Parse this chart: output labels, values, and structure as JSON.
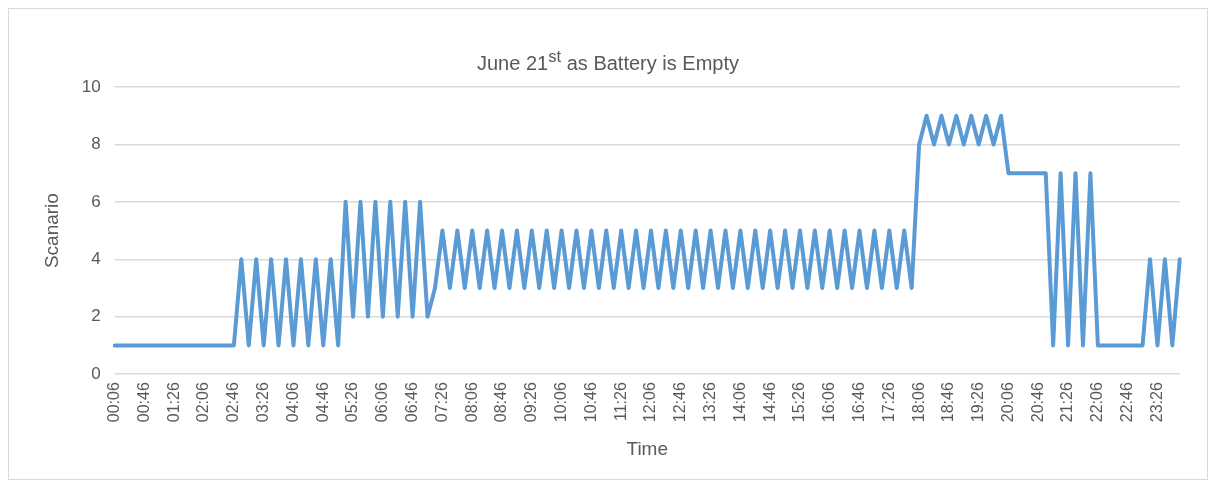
{
  "chart_data": {
    "type": "line",
    "title": "June 21$^{st}$ as Battery is Empty",
    "xlabel": "Time",
    "ylabel": "Scanario",
    "categories": [
      "00:06",
      null,
      null,
      null,
      "00:46",
      null,
      null,
      null,
      "01:26",
      null,
      null,
      null,
      "02:06",
      null,
      null,
      null,
      "02:46",
      null,
      null,
      null,
      "03:26",
      null,
      null,
      null,
      "04:06",
      null,
      null,
      null,
      "04:46",
      null,
      null,
      null,
      "05:26",
      null,
      null,
      null,
      "06:06",
      null,
      null,
      null,
      "06:46",
      null,
      null,
      null,
      "07:26",
      null,
      null,
      null,
      "08:06",
      null,
      null,
      null,
      "08:46",
      null,
      null,
      null,
      "09:26",
      null,
      null,
      null,
      "10:06",
      null,
      null,
      null,
      "10:46",
      null,
      null,
      null,
      "11:26",
      null,
      null,
      null,
      "12:06",
      null,
      null,
      null,
      "12:46",
      null,
      null,
      null,
      "13:26",
      null,
      null,
      null,
      "14:06",
      null,
      null,
      null,
      "14:46",
      null,
      null,
      null,
      "15:26",
      null,
      null,
      null,
      "16:06",
      null,
      null,
      null,
      "16:46",
      null,
      null,
      null,
      "17:26",
      null,
      null,
      null,
      "18:06",
      null,
      null,
      null,
      "18:46",
      null,
      null,
      null,
      "19:26",
      null,
      null,
      null,
      "20:06",
      null,
      null,
      null,
      "20:46",
      null,
      null,
      null,
      "21:26",
      null,
      null,
      null,
      "22:06",
      null,
      null,
      null,
      "22:46",
      null,
      null,
      null,
      "23:26",
      null,
      null,
      null
    ],
    "values": [
      1,
      1,
      1,
      1,
      1,
      1,
      1,
      1,
      1,
      1,
      1,
      1,
      1,
      1,
      1,
      1,
      1,
      4,
      1,
      4,
      1,
      4,
      1,
      4,
      1,
      4,
      1,
      4,
      1,
      4,
      1,
      6,
      2,
      6,
      2,
      6,
      2,
      6,
      2,
      6,
      2,
      6,
      2,
      3,
      5,
      3,
      5,
      3,
      5,
      3,
      5,
      3,
      5,
      3,
      5,
      3,
      5,
      3,
      5,
      3,
      5,
      3,
      5,
      3,
      5,
      3,
      5,
      3,
      5,
      3,
      5,
      3,
      5,
      3,
      5,
      3,
      5,
      3,
      5,
      3,
      5,
      3,
      5,
      3,
      5,
      3,
      5,
      3,
      5,
      3,
      5,
      3,
      5,
      3,
      5,
      3,
      5,
      3,
      5,
      3,
      5,
      3,
      5,
      3,
      5,
      3,
      5,
      3,
      8,
      9,
      8,
      9,
      8,
      9,
      8,
      9,
      8,
      9,
      8,
      9,
      7,
      7,
      7,
      7,
      7,
      7,
      1,
      7,
      1,
      7,
      1,
      7,
      1,
      1,
      1,
      1,
      1,
      1,
      1,
      4,
      1,
      4,
      1,
      4
    ],
    "color": "#5b9bd5",
    "marker": "none",
    "line_style": "solid",
    "ylim": [
      0,
      10
    ],
    "yticks": [
      0,
      2,
      4,
      6,
      8,
      10
    ],
    "grid": "y"
  }
}
